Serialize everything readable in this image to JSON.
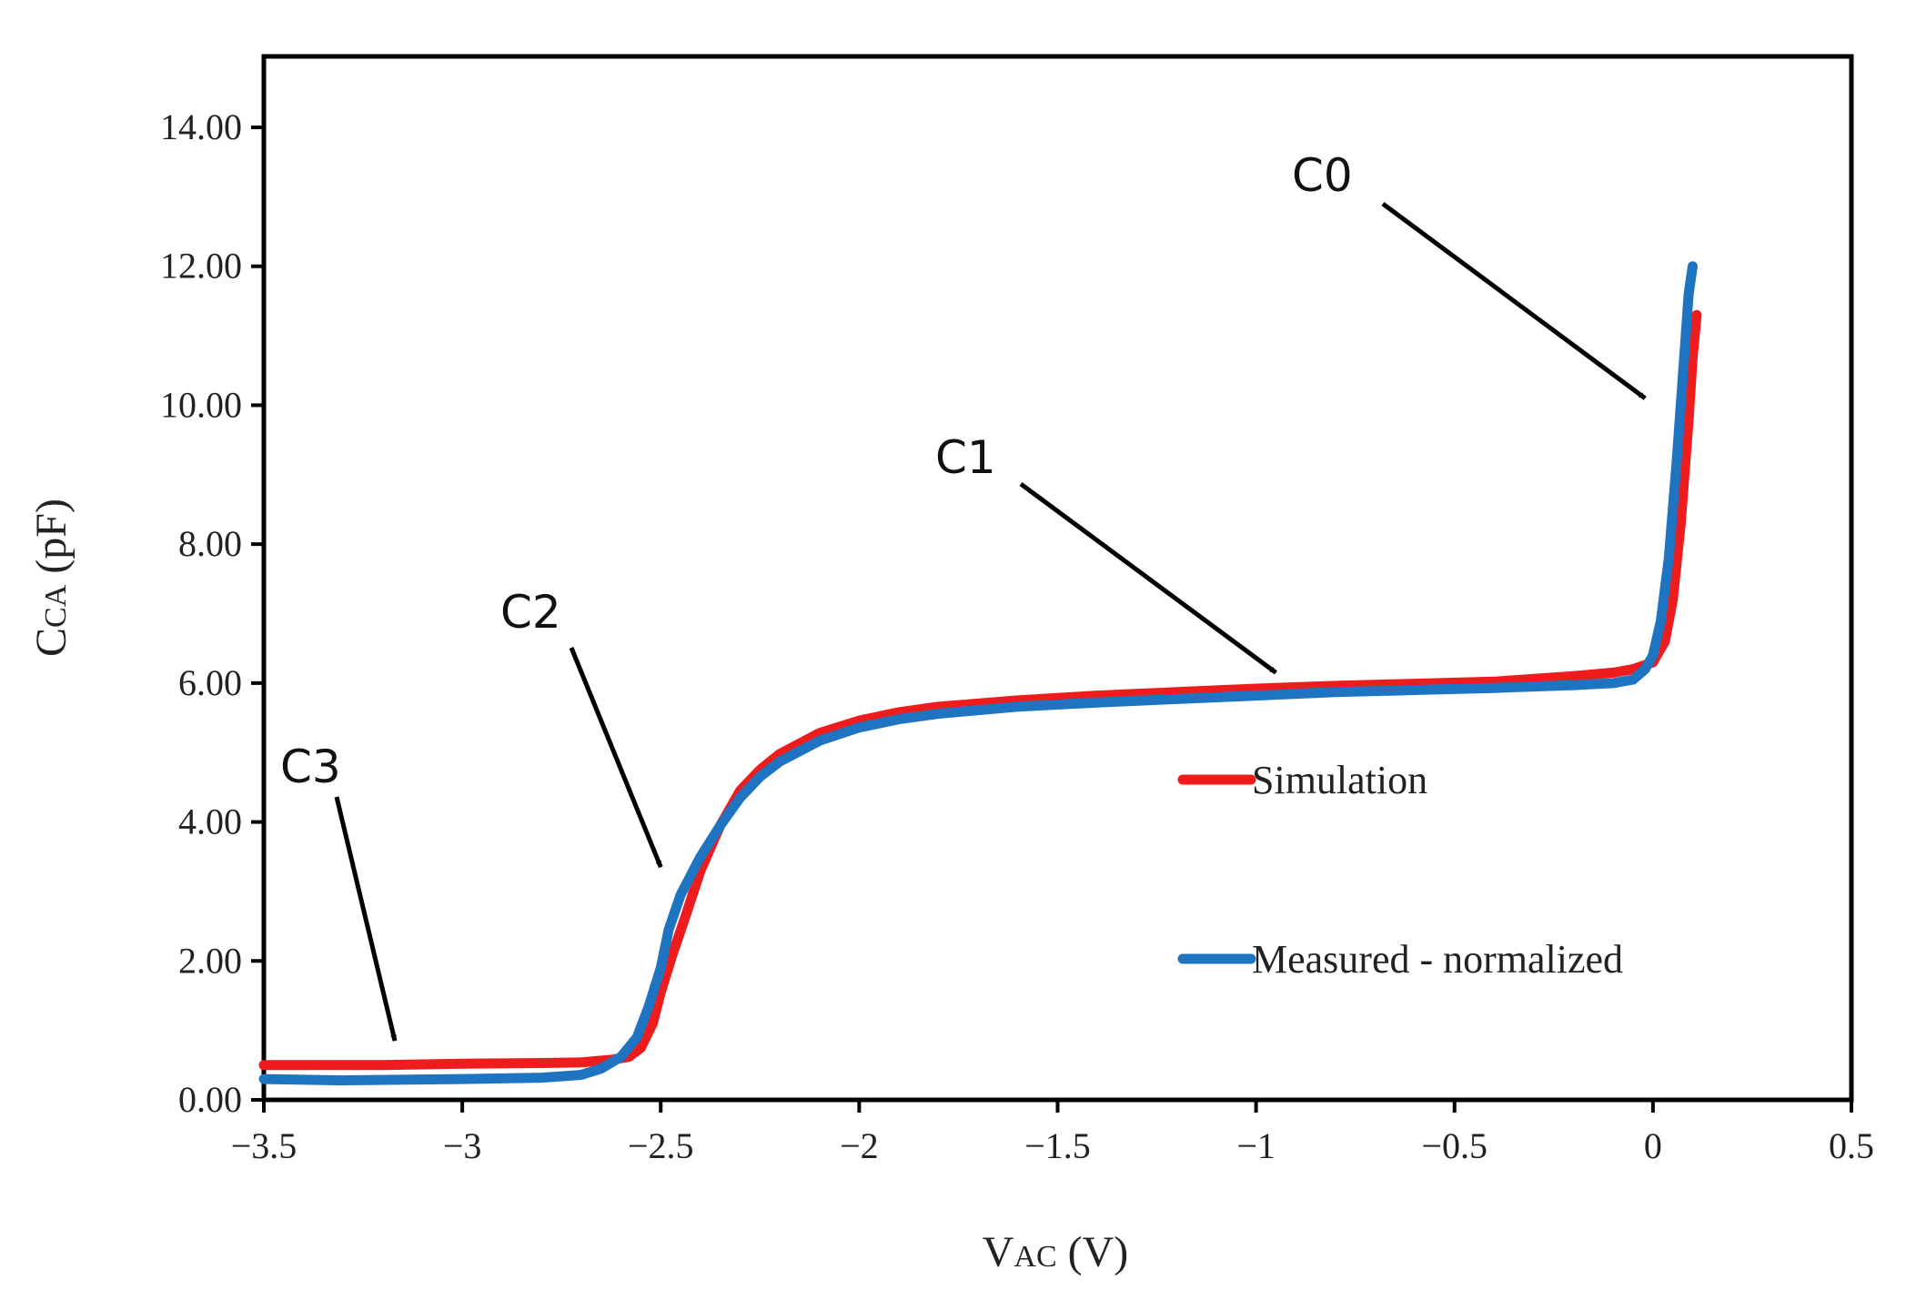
{
  "chart_data": {
    "type": "line",
    "title": "",
    "xlabel": {
      "main": "V",
      "sub": "AC",
      "unit": " (V)"
    },
    "ylabel": {
      "main": "C",
      "sub": "CA",
      "unit": " (pF)"
    },
    "xlim": [
      -3.5,
      0.5
    ],
    "ylim": [
      0,
      14
    ],
    "xticks": [
      -3.5,
      -3,
      -2.5,
      -2,
      -1.5,
      -1,
      -0.5,
      0,
      0.5
    ],
    "xtick_labels": [
      "−3.5",
      "−3",
      "−2.5",
      "−2",
      "−1.5",
      "−1",
      "−0.5",
      "0",
      "0.5"
    ],
    "yticks": [
      0,
      2,
      4,
      6,
      8,
      10,
      12,
      14
    ],
    "ytick_labels": [
      "0.00",
      "2.00",
      "4.00",
      "6.00",
      "8.00",
      "10.00",
      "12.00",
      "14.00"
    ],
    "grid": false,
    "legend_position": "center-right",
    "colors": {
      "simulation": "#ee1c1c",
      "measured": "#1f74c2",
      "axis": "#000000"
    },
    "series": [
      {
        "name": "Simulation",
        "x": [
          -3.5,
          -3.2,
          -3.0,
          -2.8,
          -2.7,
          -2.62,
          -2.58,
          -2.55,
          -2.52,
          -2.5,
          -2.47,
          -2.44,
          -2.4,
          -2.35,
          -2.3,
          -2.25,
          -2.2,
          -2.1,
          -2.0,
          -1.9,
          -1.8,
          -1.6,
          -1.4,
          -1.2,
          -1.0,
          -0.8,
          -0.6,
          -0.4,
          -0.2,
          -0.1,
          -0.05,
          0.0,
          0.03,
          0.05,
          0.07,
          0.09,
          0.1,
          0.11
        ],
        "values": [
          0.5,
          0.5,
          0.52,
          0.53,
          0.54,
          0.58,
          0.62,
          0.75,
          1.1,
          1.55,
          2.1,
          2.6,
          3.3,
          3.95,
          4.45,
          4.75,
          4.98,
          5.28,
          5.46,
          5.58,
          5.66,
          5.75,
          5.82,
          5.87,
          5.92,
          5.96,
          5.99,
          6.02,
          6.1,
          6.15,
          6.2,
          6.3,
          6.6,
          7.2,
          8.3,
          9.8,
          10.7,
          11.3
        ]
      },
      {
        "name": "Measured - normalized",
        "x": [
          -3.5,
          -3.3,
          -3.0,
          -2.8,
          -2.7,
          -2.65,
          -2.6,
          -2.56,
          -2.53,
          -2.5,
          -2.48,
          -2.45,
          -2.4,
          -2.35,
          -2.3,
          -2.25,
          -2.2,
          -2.1,
          -2.0,
          -1.9,
          -1.8,
          -1.6,
          -1.4,
          -1.2,
          -1.0,
          -0.8,
          -0.6,
          -0.4,
          -0.2,
          -0.1,
          -0.05,
          -0.02,
          0.0,
          0.02,
          0.04,
          0.06,
          0.08,
          0.09,
          0.1
        ],
        "values": [
          0.3,
          0.28,
          0.3,
          0.32,
          0.36,
          0.45,
          0.62,
          0.9,
          1.35,
          1.9,
          2.45,
          2.95,
          3.5,
          3.95,
          4.35,
          4.65,
          4.87,
          5.17,
          5.36,
          5.48,
          5.56,
          5.66,
          5.72,
          5.77,
          5.82,
          5.87,
          5.9,
          5.93,
          5.97,
          6.0,
          6.05,
          6.2,
          6.4,
          6.9,
          7.8,
          9.2,
          10.8,
          11.6,
          12.0
        ]
      }
    ],
    "annotations": [
      {
        "label": "C0",
        "x": -0.02,
        "y": 10.1
      },
      {
        "label": "C1",
        "x": -0.95,
        "y": 6.15
      },
      {
        "label": "C2",
        "x": -2.5,
        "y": 3.35
      },
      {
        "label": "C3",
        "x": -3.17,
        "y": 0.85
      }
    ]
  }
}
